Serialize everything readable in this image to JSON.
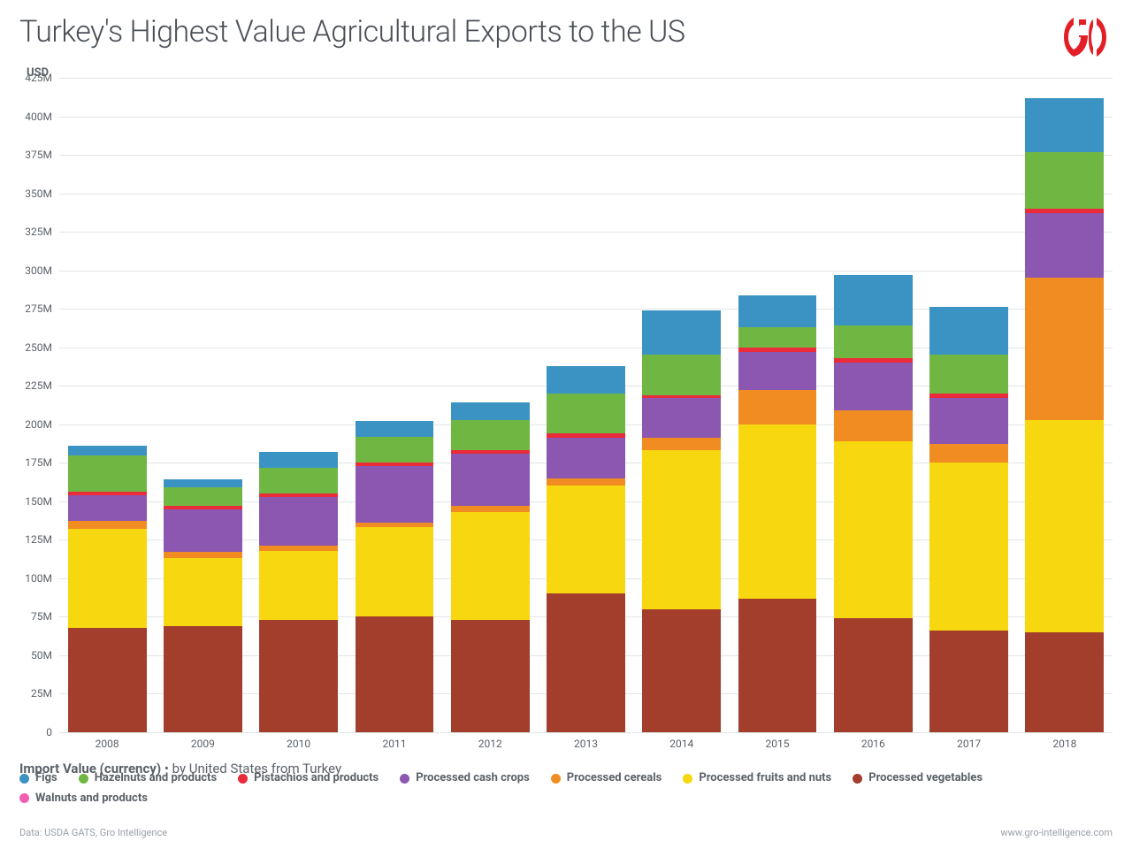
{
  "title": "Turkey's Highest Value Agricultural Exports to the US",
  "ylabel": "USD",
  "subtitle_bold": "Import Value (currency)",
  "subtitle_rest": " • by United States from Turkey",
  "footer_left": "Data: USDA GATS, Gro Intelligence",
  "footer_right": "www.gro-intelligence.com",
  "logo_color": "#e31e26",
  "chart": {
    "type": "stacked-bar",
    "background_color": "#ffffff",
    "grid_color": "#e1e4e7",
    "ylim": [
      0,
      425
    ],
    "ytick_step": 25,
    "ytick_suffix": "M",
    "bar_width": 0.82,
    "categories": [
      "2008",
      "2009",
      "2010",
      "2011",
      "2012",
      "2013",
      "2014",
      "2015",
      "2016",
      "2017",
      "2018"
    ],
    "series": [
      {
        "name": "Processed vegetables",
        "color": "#a23e2b",
        "values": [
          68,
          69,
          73,
          75,
          73,
          90,
          80,
          87,
          74,
          66,
          65
        ]
      },
      {
        "name": "Processed fruits and nuts",
        "color": "#f7d70f",
        "values": [
          64,
          44,
          45,
          58,
          70,
          70,
          103,
          113,
          115,
          109,
          138
        ]
      },
      {
        "name": "Processed cereals",
        "color": "#f08c22",
        "values": [
          5,
          4,
          3,
          3,
          4,
          5,
          8,
          22,
          20,
          12,
          92
        ]
      },
      {
        "name": "Processed cash crops",
        "color": "#8b57b0",
        "values": [
          17,
          28,
          32,
          37,
          34,
          26,
          26,
          25,
          31,
          30,
          42
        ]
      },
      {
        "name": "Pistachios and products",
        "color": "#eb2a3a",
        "values": [
          2,
          2,
          2,
          2,
          2,
          3,
          2,
          3,
          3,
          3,
          3
        ]
      },
      {
        "name": "Hazelnuts and products",
        "color": "#6fb742",
        "values": [
          24,
          12,
          17,
          17,
          20,
          26,
          26,
          13,
          21,
          25,
          37
        ]
      },
      {
        "name": "Figs",
        "color": "#3b93c4",
        "values": [
          6,
          5,
          10,
          10,
          11,
          18,
          29,
          21,
          33,
          31,
          35
        ]
      },
      {
        "name": "Walnuts and products",
        "color": "#f25fb0",
        "values": [
          0,
          0,
          0,
          0,
          0,
          0,
          0,
          0,
          0,
          0,
          0
        ]
      }
    ],
    "title_fontsize": 34,
    "label_fontsize": 12,
    "axis_text_color": "#5b6168"
  }
}
